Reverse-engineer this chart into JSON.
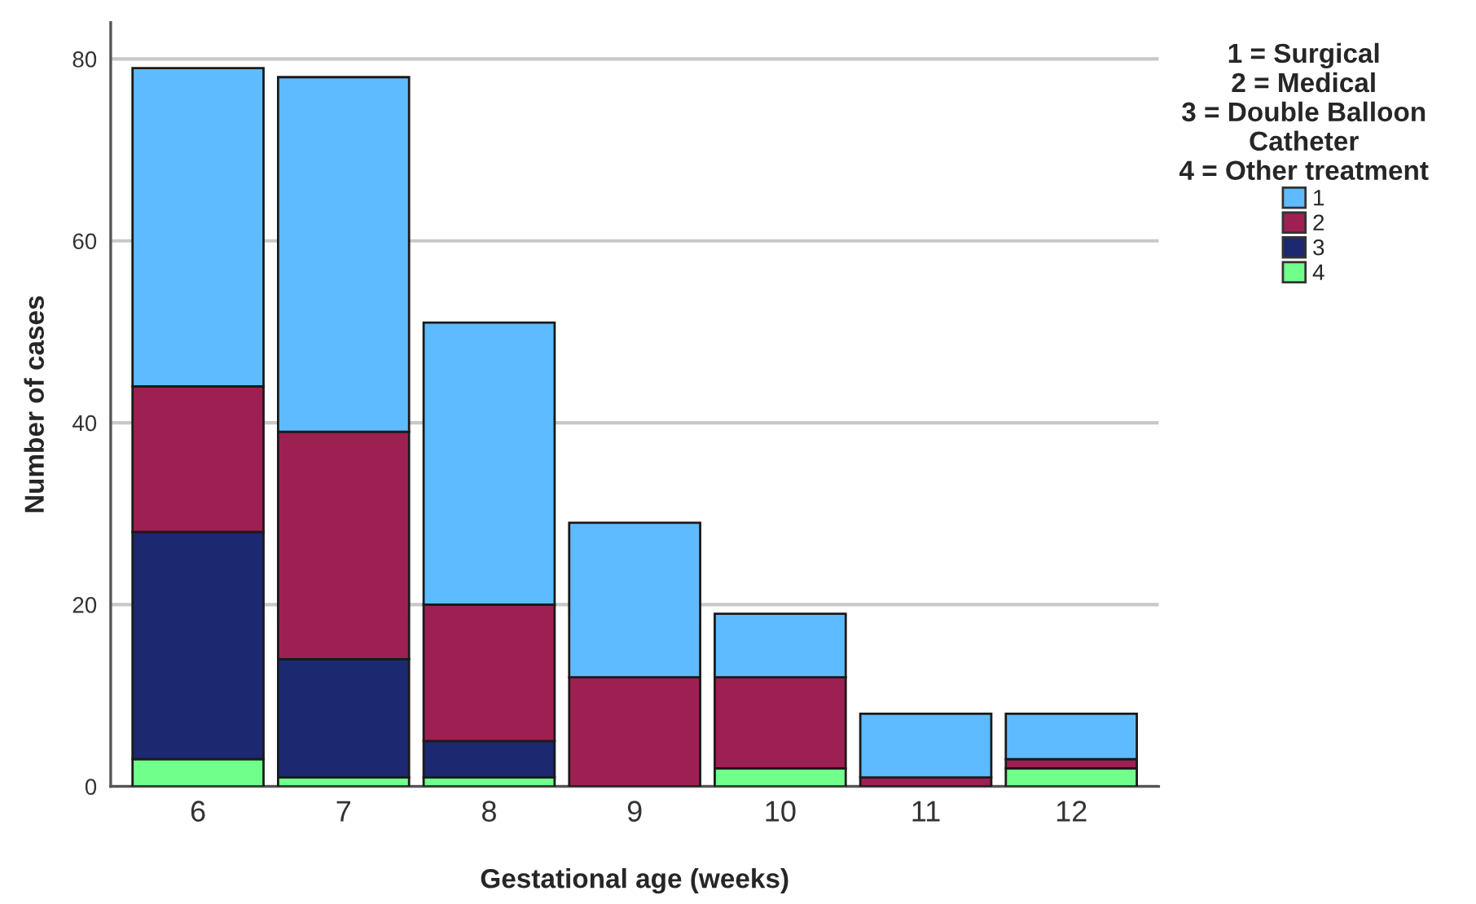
{
  "chart_data": {
    "type": "bar",
    "stacked": true,
    "xlabel": "Gestational age (weeks)",
    "ylabel": "Number of cases",
    "legend_title": "1 = Surgical\n2 = Medical\n3 = Double Balloon\nCatheter\n4 = Other treatment",
    "categories": [
      "6",
      "7",
      "8",
      "9",
      "10",
      "11",
      "12"
    ],
    "series": [
      {
        "name": "4",
        "color": "#70ff8a",
        "values": [
          3,
          1,
          1,
          0,
          2,
          0,
          2
        ]
      },
      {
        "name": "3",
        "color": "#1c2870",
        "values": [
          25,
          13,
          4,
          0,
          0,
          0,
          0
        ]
      },
      {
        "name": "2",
        "color": "#9e2052",
        "values": [
          16,
          25,
          15,
          12,
          10,
          1,
          1
        ]
      },
      {
        "name": "1",
        "color": "#5fbbff",
        "values": [
          35,
          39,
          31,
          17,
          7,
          7,
          5
        ]
      }
    ],
    "ylim": [
      0,
      84
    ],
    "yticks": [
      0,
      20,
      40,
      60,
      80
    ],
    "grid": "y",
    "legend": "top right"
  }
}
